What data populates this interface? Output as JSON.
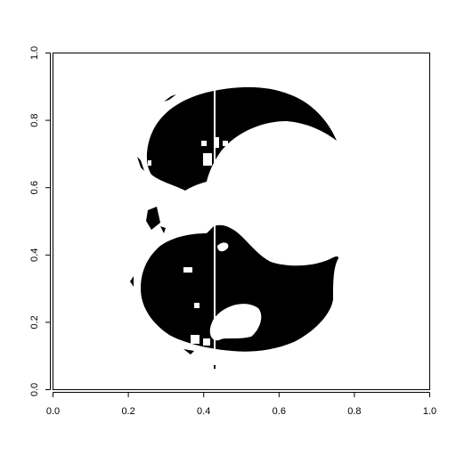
{
  "chart_data": {
    "type": "image",
    "title": "",
    "xlabel": "",
    "ylabel": "",
    "xlim": [
      0.0,
      1.0
    ],
    "ylim": [
      0.0,
      1.0
    ],
    "x_ticks": [
      "0.0",
      "0.2",
      "0.4",
      "0.6",
      "0.8",
      "1.0"
    ],
    "y_ticks": [
      "0.0",
      "0.2",
      "0.4",
      "0.6",
      "0.8",
      "1.0"
    ],
    "grid": false,
    "legend": "none",
    "colors": {
      "foreground": "#000000",
      "background": "#ffffff",
      "frame": "#000000"
    }
  }
}
